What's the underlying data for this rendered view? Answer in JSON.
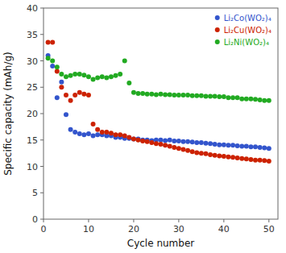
{
  "chart_data": {
    "type": "scatter",
    "xlabel": "Cycle number",
    "ylabel": "Specific capacity (mAh/g)",
    "xlim": [
      0,
      52
    ],
    "ylim": [
      0,
      40
    ],
    "xticks": [
      0,
      10,
      20,
      30,
      40,
      50
    ],
    "yticks": [
      0,
      5,
      10,
      15,
      20,
      25,
      30,
      35,
      40
    ],
    "grid": false,
    "legend": "upper right",
    "marker": "circle",
    "x": [
      1,
      2,
      3,
      4,
      5,
      6,
      7,
      8,
      9,
      10,
      11,
      12,
      13,
      14,
      15,
      16,
      17,
      18,
      19,
      20,
      21,
      22,
      23,
      24,
      25,
      26,
      27,
      28,
      29,
      30,
      31,
      32,
      33,
      34,
      35,
      36,
      37,
      38,
      39,
      40,
      41,
      42,
      43,
      44,
      45,
      46,
      47,
      48,
      49,
      50
    ],
    "series": [
      {
        "name": "Li₂Co(WO₂)₄",
        "color": "#3355cc",
        "values": [
          31.0,
          29.0,
          23.0,
          26.0,
          19.8,
          17.0,
          16.5,
          16.2,
          16.0,
          16.2,
          15.8,
          16.0,
          16.0,
          15.8,
          15.8,
          15.5,
          15.5,
          15.3,
          15.3,
          15.2,
          15.2,
          15.0,
          15.0,
          14.9,
          15.0,
          15.0,
          14.9,
          15.0,
          14.8,
          14.8,
          14.7,
          14.7,
          14.6,
          14.5,
          14.5,
          14.4,
          14.3,
          14.2,
          14.1,
          14.1,
          14.0,
          14.0,
          13.9,
          13.8,
          13.8,
          13.7,
          13.7,
          13.6,
          13.5,
          13.4
        ]
      },
      {
        "name": "Li₂Cu(WO₂)₄",
        "color": "#cc2200",
        "values": [
          33.5,
          33.5,
          28.0,
          25.0,
          23.5,
          22.5,
          23.5,
          24.0,
          23.7,
          23.5,
          18.0,
          17.0,
          16.5,
          16.5,
          16.3,
          16.0,
          16.0,
          15.8,
          15.5,
          15.2,
          15.0,
          14.8,
          14.7,
          14.5,
          14.3,
          14.2,
          14.0,
          13.8,
          13.6,
          13.4,
          13.2,
          13.0,
          12.8,
          12.6,
          12.5,
          12.4,
          12.2,
          12.1,
          12.0,
          11.9,
          11.8,
          11.7,
          11.6,
          11.5,
          11.4,
          11.3,
          11.2,
          11.2,
          11.1,
          11.0
        ]
      },
      {
        "name": "Li₂Ni(WO₂)₄",
        "color": "#22aa22",
        "values": [
          30.5,
          30.0,
          28.8,
          27.5,
          27.0,
          27.2,
          27.5,
          27.5,
          27.3,
          27.0,
          26.5,
          26.8,
          27.0,
          26.8,
          27.0,
          27.2,
          27.5,
          30.0,
          25.8,
          24.0,
          23.8,
          23.8,
          23.7,
          23.7,
          23.6,
          23.7,
          23.6,
          23.6,
          23.5,
          23.5,
          23.5,
          23.5,
          23.4,
          23.4,
          23.4,
          23.3,
          23.3,
          23.3,
          23.2,
          23.2,
          23.0,
          23.0,
          23.0,
          22.8,
          22.8,
          22.8,
          22.7,
          22.6,
          22.5,
          22.5
        ]
      }
    ]
  }
}
